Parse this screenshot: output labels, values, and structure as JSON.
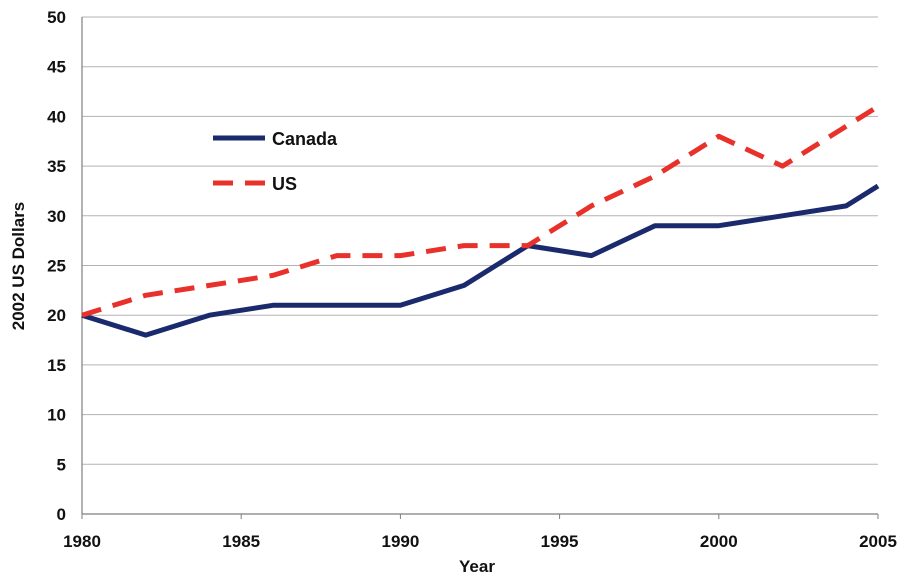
{
  "chart_data": {
    "type": "line",
    "xlabel": "Year",
    "ylabel": "2002 US Dollars",
    "xlim": [
      1980,
      2005
    ],
    "ylim": [
      0,
      50
    ],
    "x_ticks": [
      "1980",
      "1985",
      "1990",
      "1995",
      "2000",
      "2005"
    ],
    "y_ticks": [
      "0",
      "5",
      "10",
      "15",
      "20",
      "25",
      "30",
      "35",
      "40",
      "45",
      "50"
    ],
    "grid": "horizontal",
    "legend_position": "top-left",
    "series": [
      {
        "name": "Canada",
        "color": "#1a2a6c",
        "style": "solid",
        "x": [
          1980,
          1982,
          1984,
          1986,
          1988,
          1990,
          1992,
          1994,
          1996,
          1998,
          2000,
          2002,
          2004,
          2005
        ],
        "y": [
          20,
          18,
          20,
          21,
          21,
          21,
          23,
          27,
          26,
          29,
          29,
          30,
          31,
          33
        ]
      },
      {
        "name": "US",
        "color": "#e8312a",
        "style": "dashed",
        "x": [
          1980,
          1982,
          1984,
          1986,
          1988,
          1990,
          1992,
          1994,
          1996,
          1998,
          2000,
          2002,
          2004,
          2005
        ],
        "y": [
          20,
          22,
          23,
          24,
          26,
          26,
          27,
          27,
          31,
          34,
          38,
          35,
          39,
          41
        ]
      }
    ]
  }
}
